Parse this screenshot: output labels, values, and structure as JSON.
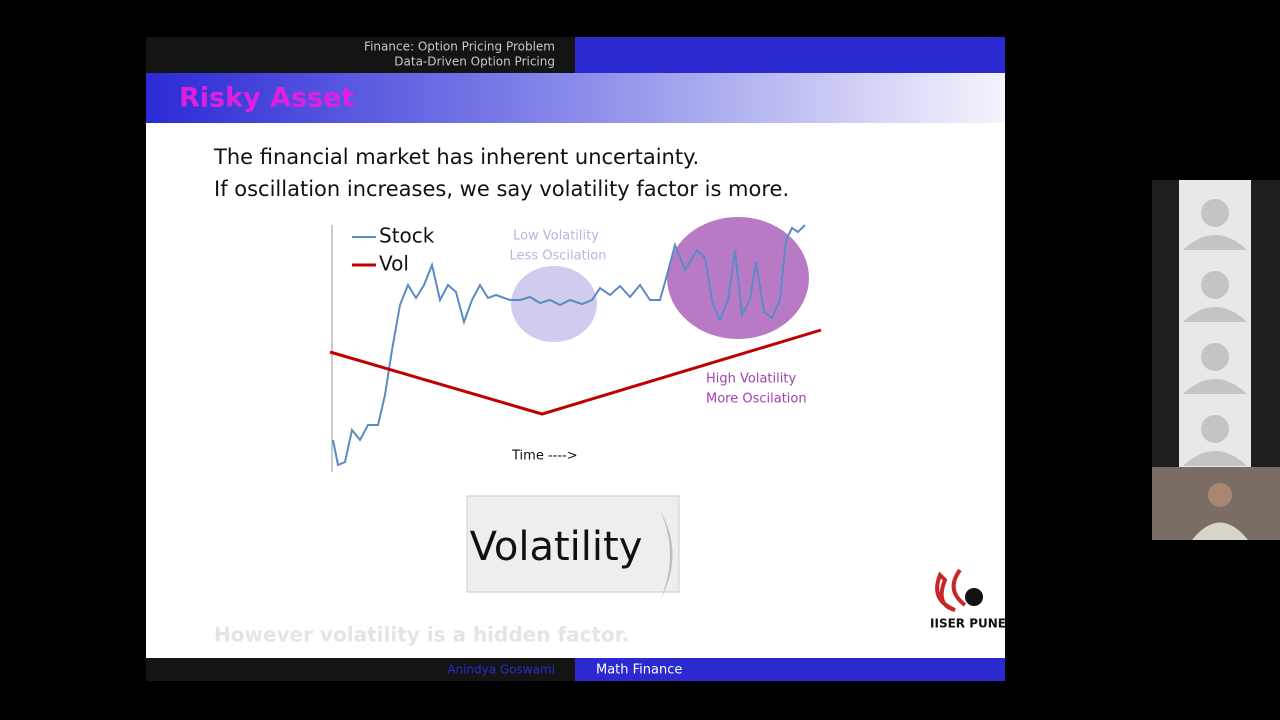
{
  "header": {
    "section": "Finance: Option Pricing Problem",
    "subsection": "Data-Driven Option Pricing"
  },
  "slide": {
    "title": "Risky Asset",
    "lines": [
      "The financial market has inherent uncertainty.",
      "If oscillation increases, we say volatility factor is more."
    ],
    "figure": {
      "legend": [
        "Stock",
        "Vol"
      ],
      "low_note": [
        "Low Volatility",
        "Less Oscilation"
      ],
      "high_note": [
        "High Volatility",
        "More Oscilation"
      ],
      "x_label": "Time ---->"
    },
    "banner": "Volatility",
    "logo": "IISER PUNE",
    "hidden_line": "However volatility is a hidden factor."
  },
  "footer": {
    "author": "Anindya Goswami",
    "course": "Math Finance"
  }
}
